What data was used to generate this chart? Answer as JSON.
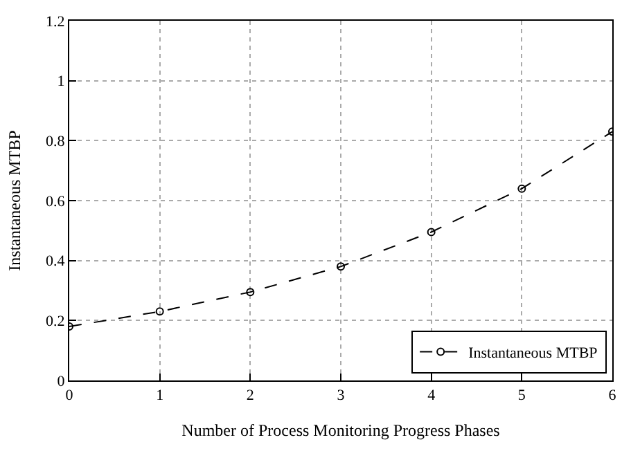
{
  "chart_data": {
    "type": "line",
    "xlabel": "Number of Process Monitoring Progress Phases",
    "ylabel": "Instantaneous MTBP",
    "x": [
      0,
      1,
      2,
      3,
      4,
      5,
      6
    ],
    "series": [
      {
        "name": "Instantaneous MTBP",
        "color": "#000000",
        "values": [
          0.18,
          0.23,
          0.295,
          0.38,
          0.495,
          0.64,
          0.83
        ]
      }
    ],
    "xlim": [
      0,
      6
    ],
    "xticks": [
      0,
      1,
      2,
      3,
      4,
      5,
      6
    ],
    "ylim": [
      0,
      1.2
    ],
    "yticks": [
      0,
      0.2,
      0.4,
      0.6,
      0.8,
      1,
      1.2
    ],
    "grid": true,
    "legend": "bottom right",
    "marker": "circle",
    "line_style": "dashed"
  }
}
